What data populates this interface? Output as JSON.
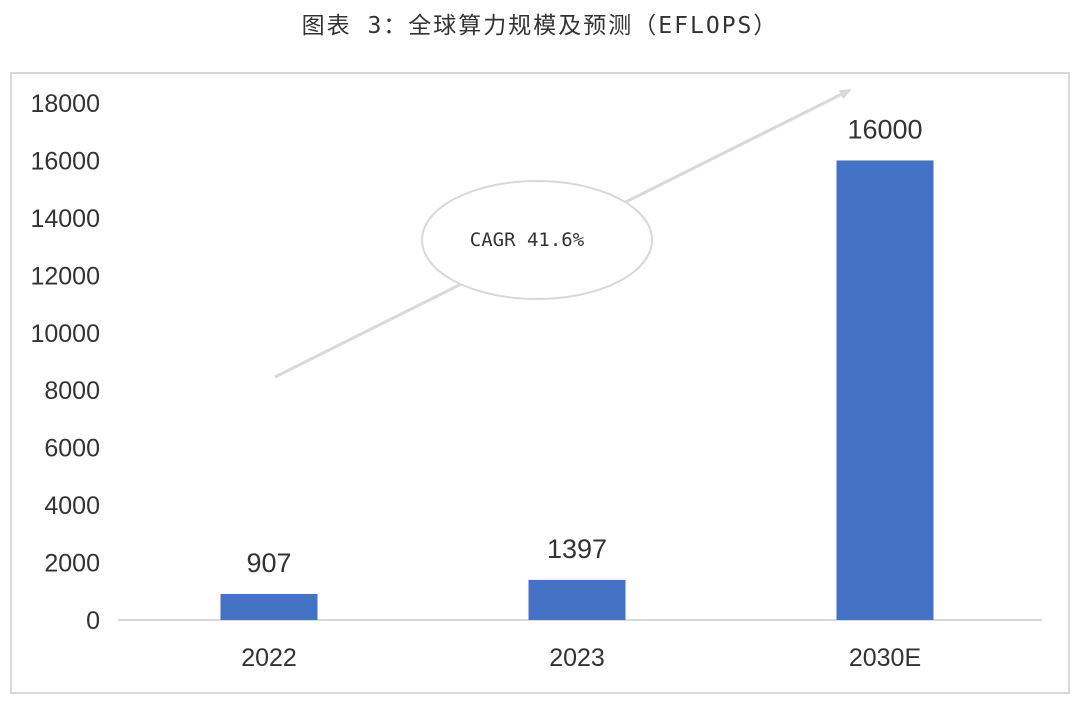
{
  "title": "图表 3：全球算力规模及预测（EFLOPS）",
  "chart_data": {
    "type": "bar",
    "title": "图表 3：全球算力规模及预测（EFLOPS）",
    "categories": [
      "2022",
      "2023",
      "2030E"
    ],
    "values": [
      907,
      1397,
      16000
    ],
    "data_labels": [
      "907",
      "1397",
      "16000"
    ],
    "ylim": [
      0,
      18000
    ],
    "y_ticks": [
      0,
      2000,
      4000,
      6000,
      8000,
      10000,
      12000,
      14000,
      16000,
      18000
    ],
    "y_tick_labels": [
      "0",
      "2000",
      "4000",
      "6000",
      "8000",
      "10000",
      "12000",
      "14000",
      "16000",
      "18000"
    ],
    "xlabel": "",
    "ylabel": "",
    "grid": false,
    "legend": "none",
    "bar_color": "#4472c4",
    "annotation": "CAGR 41.6%"
  }
}
